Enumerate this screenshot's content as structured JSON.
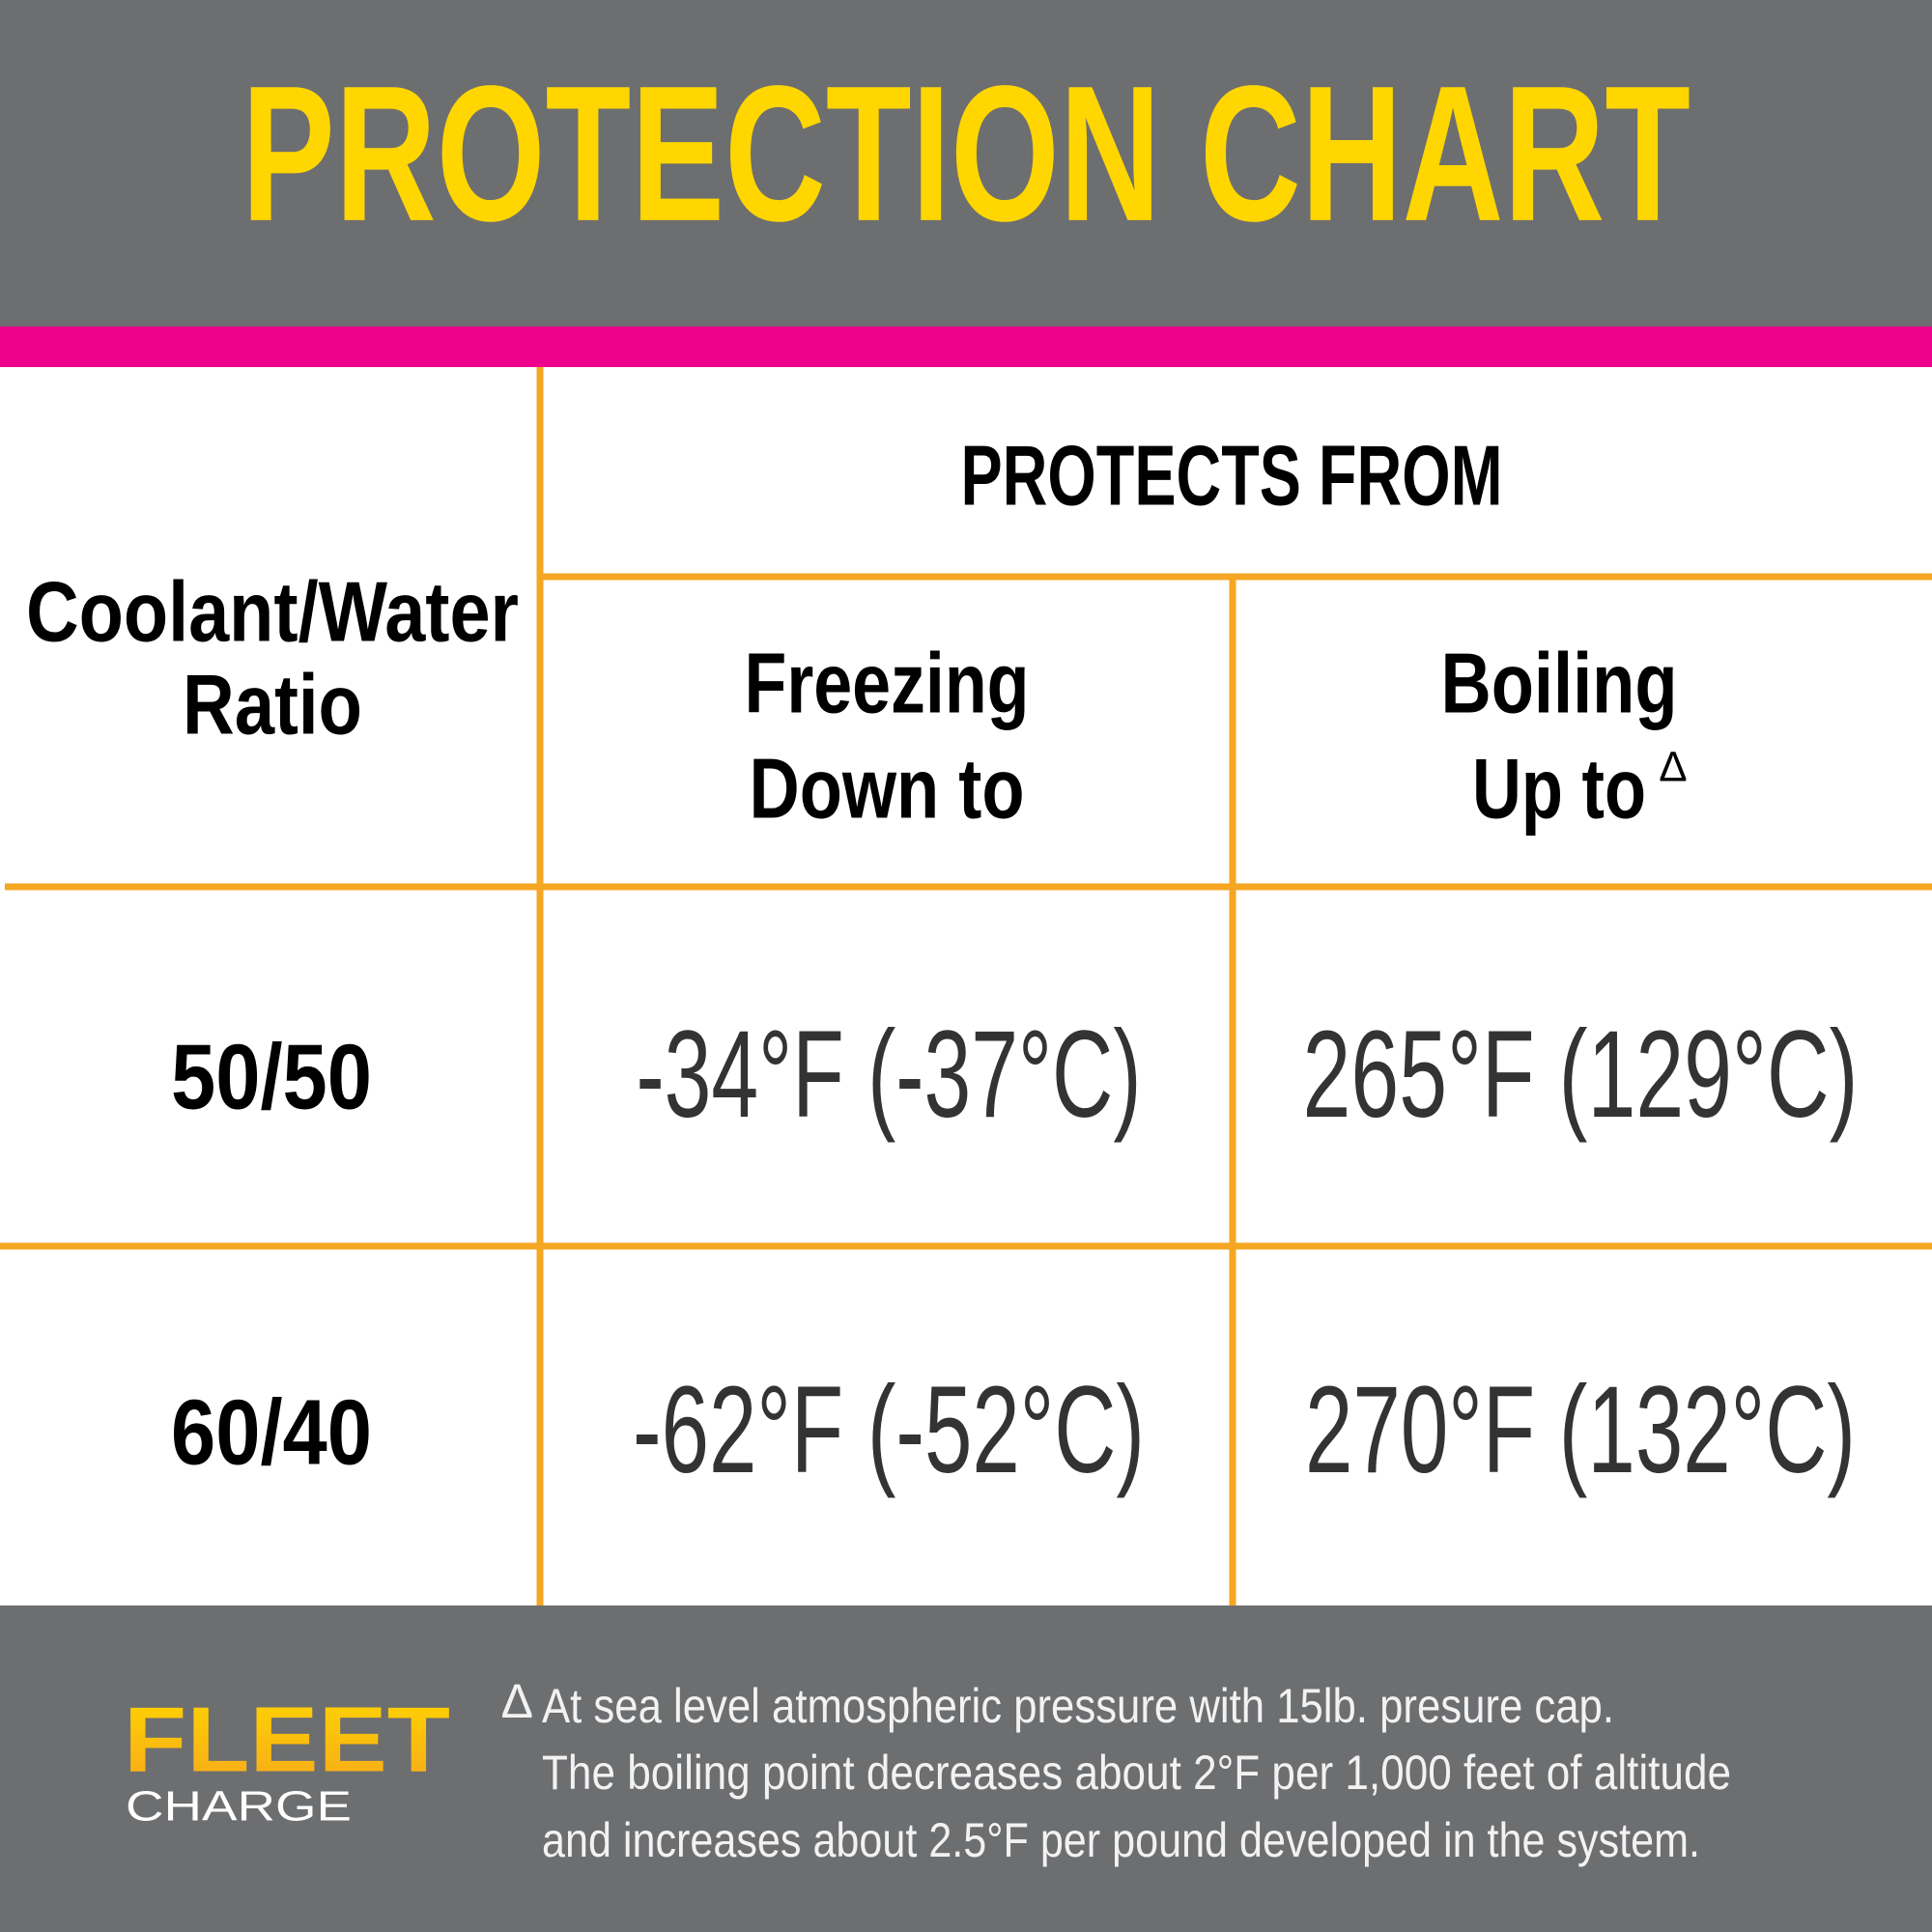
{
  "header": {
    "title": "PROTECTION CHART"
  },
  "table": {
    "group_header": "PROTECTS FROM",
    "columns": [
      [
        "Coolant/Water",
        "Ratio"
      ],
      [
        "Freezing",
        "Down to"
      ],
      [
        "Boiling",
        "Up to"
      ]
    ],
    "boiling_marker": "∆",
    "rows": [
      [
        "50/50",
        "-34°F (-37°C)",
        "265°F (129°C)"
      ],
      [
        "60/40",
        "-62°F (-52°C)",
        "270°F (132°C)"
      ]
    ]
  },
  "footer": {
    "logo": {
      "line1": "FLEET",
      "line2": "CHARGE"
    },
    "footnote_marker": "∆",
    "footnote_lines": [
      "At sea level atmospheric pressure with 15lb. presure cap.",
      "The boiling point decreases about 2°F per 1,000 feet of altitude",
      "and increases about 2.5°F per pound developed in the system."
    ]
  }
}
